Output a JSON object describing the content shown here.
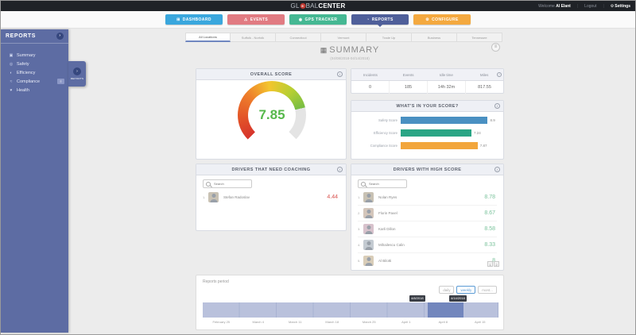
{
  "topbar": {
    "logo_pre": "GL",
    "logo_globe": "⊕",
    "logo_mid": "BAL",
    "logo_bold": "CENTER",
    "welcome_label": "Welcome",
    "username": "Al Elant",
    "logout_label": "Logout",
    "settings_label": "Settings",
    "accent_black": "#1f2227"
  },
  "nav": {
    "items": [
      {
        "label": "DASHBOARD",
        "icon": "dashboard-icon",
        "glyph": "⊞",
        "color": "#3aa7dd",
        "active": false
      },
      {
        "label": "EVENTS",
        "icon": "events-icon",
        "glyph": "⚠",
        "color": "#e17b82",
        "active": false
      },
      {
        "label": "GPS TRACKER",
        "icon": "gps-icon",
        "glyph": "◉",
        "color": "#45b893",
        "active": false
      },
      {
        "label": "REPORTS",
        "icon": "reports-icon",
        "glyph": "◔",
        "color": "#4f5f9a",
        "active": true
      },
      {
        "label": "CONFIGURE",
        "icon": "configure-icon",
        "glyph": "⚙",
        "color": "#f4a93f",
        "active": false
      }
    ]
  },
  "sidebar": {
    "title": "REPORTS",
    "badge_glyph": "›",
    "items": [
      {
        "label": "Summary",
        "glyph": "▣"
      },
      {
        "label": "Safety",
        "glyph": "◎"
      },
      {
        "label": "Efficiency",
        "glyph": "◐"
      },
      {
        "label": "Compliance",
        "glyph": "≈",
        "extra_glyph": "≡"
      },
      {
        "label": "Health",
        "glyph": "♥"
      }
    ],
    "flyout": {
      "label": "REPORTS",
      "glyph": "›"
    },
    "color": "#5d6ca3"
  },
  "tabs": {
    "items": [
      "All Locations",
      "Suffolk - Norfolk",
      "Connecticut",
      "Vermont",
      "Trade Up",
      "Business",
      "Tennessee"
    ]
  },
  "page": {
    "title": "SUMMARY",
    "title_glyph": "▦",
    "date_range": "(04/08/2018-04/14/2018)",
    "export_glyph": "≡"
  },
  "overall_score": {
    "title": "OVERALL SCORE",
    "value": "7.85",
    "info_glyph": "i",
    "value_color": "#56b84b"
  },
  "stats": {
    "columns": [
      {
        "label": "Incidents",
        "value": "0"
      },
      {
        "label": "Events",
        "value": "185"
      },
      {
        "label": "Idle time",
        "value": "14h 32m"
      },
      {
        "label": "Miles",
        "value": "817.55"
      }
    ],
    "info_glyph": "i"
  },
  "breakdown": {
    "title": "WHAT'S IN YOUR SCORE?",
    "info_glyph": "i",
    "max": 10,
    "bars": [
      {
        "label": "Safety Score",
        "value": 8.9,
        "display": "8.9",
        "color": "#4a90c2"
      },
      {
        "label": "Efficiency Score",
        "value": 7.24,
        "display": "7.24",
        "color": "#2aa585"
      },
      {
        "label": "Compliance Score",
        "value": 7.87,
        "display": "7.87",
        "color": "#f2a63c"
      }
    ]
  },
  "coaching": {
    "title": "DRIVERS THAT NEED COACHING",
    "info_glyph": "i",
    "search_placeholder": "Search",
    "rows": [
      {
        "rank": "1.",
        "name": "Stefan Radoslav",
        "score": "4.44"
      }
    ]
  },
  "high_score": {
    "title": "DRIVERS WITH HIGH SCORE",
    "info_glyph": "i",
    "search_placeholder": "Search",
    "rows": [
      {
        "rank": "1.",
        "name": "Nolan Ryes",
        "score": "8.78"
      },
      {
        "rank": "2.",
        "name": "Florin Pavel",
        "score": "8.67"
      },
      {
        "rank": "3.",
        "name": "Karli Dillon",
        "score": "8.58"
      },
      {
        "rank": "4.",
        "name": "Mihailescu Calin",
        "score": "8.33"
      },
      {
        "rank": "5.",
        "name": "Al Bilotti",
        "score": "8"
      }
    ],
    "pagination": [
      "1",
      "2"
    ]
  },
  "period": {
    "label": "Reports period",
    "buttons": [
      {
        "label": "daily",
        "active": false
      },
      {
        "label": "weekly",
        "active": true
      },
      {
        "label": "mont...",
        "active": false
      }
    ],
    "start_tooltip": "4/8/2018",
    "end_tooltip": "4/14/2018",
    "ticks": [
      "February 25",
      "March 4",
      "March 11",
      "March 18",
      "March 25",
      "April 1",
      "April 8",
      "April 15"
    ],
    "band_color": "#b9c1dc",
    "selected_color": "#7286bd"
  }
}
